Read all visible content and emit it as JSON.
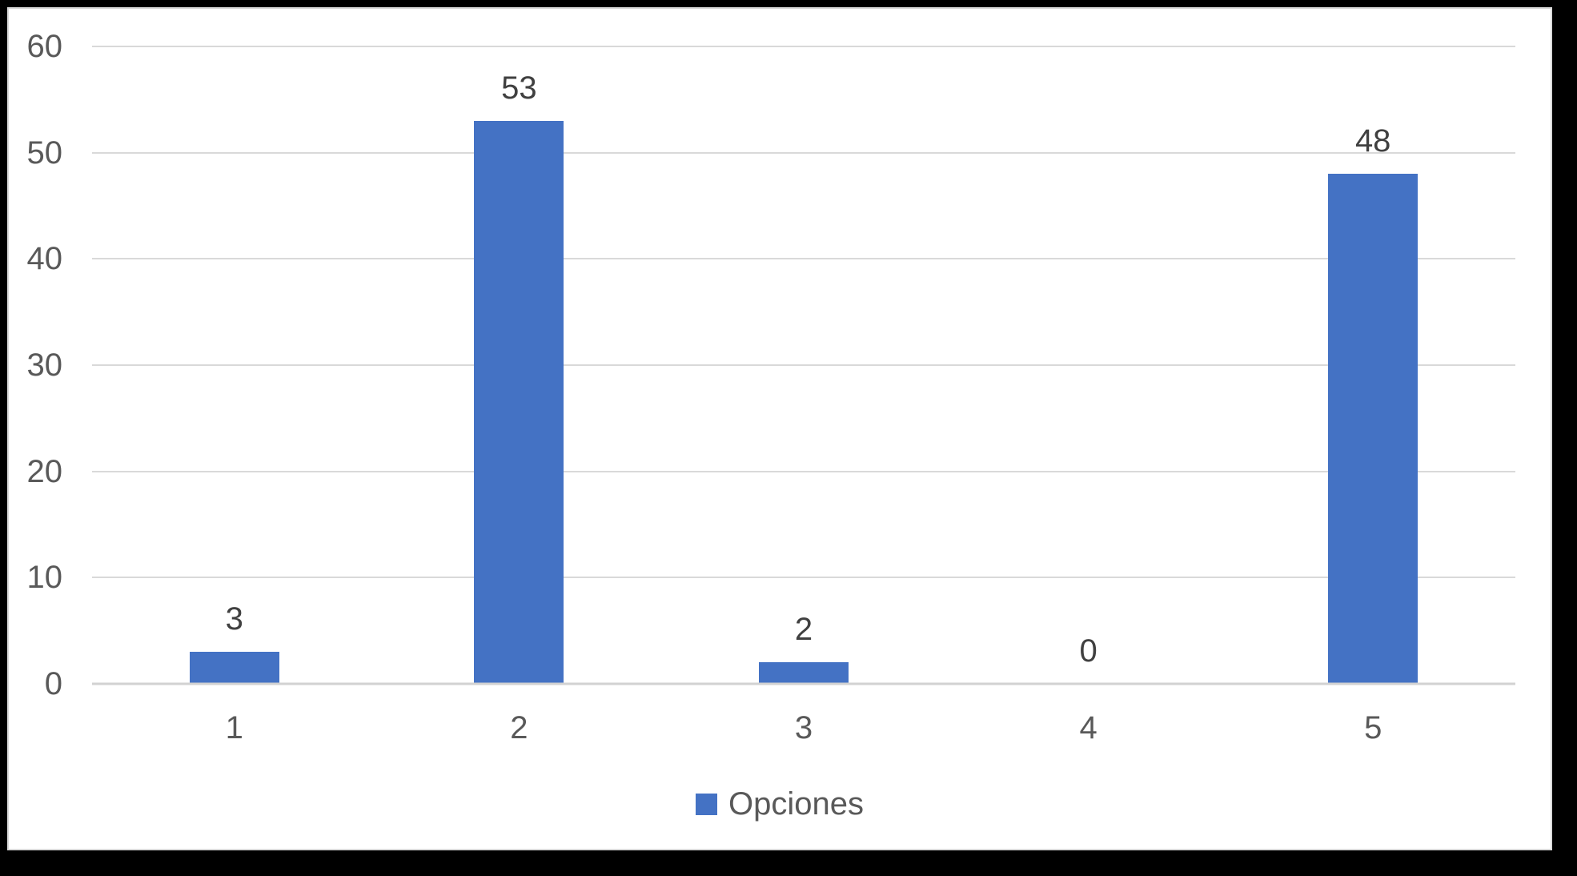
{
  "chart_data": {
    "type": "bar",
    "title": "",
    "xlabel": "",
    "ylabel": "",
    "categories": [
      "1",
      "2",
      "3",
      "4",
      "5"
    ],
    "series": [
      {
        "name": "Opciones",
        "values": [
          3,
          53,
          2,
          0,
          48
        ]
      }
    ],
    "data_labels": [
      "3",
      "53",
      "2",
      "0",
      "48"
    ],
    "y_ticks": [
      0,
      10,
      20,
      30,
      40,
      50,
      60
    ],
    "ylim": [
      0,
      60
    ],
    "grid": true,
    "legend_position": "bottom",
    "colors": {
      "bar": "#4472c4",
      "axis_text": "#595959",
      "data_label_text": "#404040",
      "gridline": "#d9d9d9",
      "axis_line": "#d2d2d2",
      "plot_background": "#ffffff",
      "outer_background": "#000000"
    }
  },
  "legend": {
    "label": "Opciones",
    "swatch_color": "#4472c4"
  }
}
